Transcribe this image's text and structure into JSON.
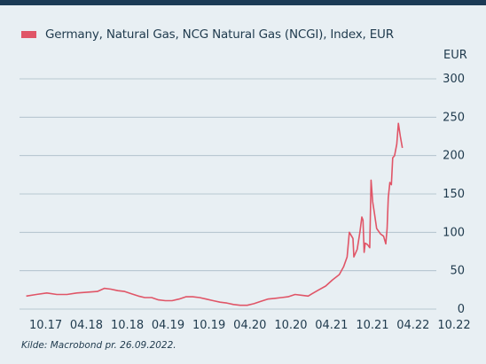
{
  "chart_data": {
    "type": "line",
    "series": [
      {
        "name": "Germany, Natural Gas, NCG Natural Gas (NCGI), Index, EUR",
        "color": "#e05567",
        "points": [
          [
            "2017-10-01",
            17
          ],
          [
            "2017-11-15",
            19
          ],
          [
            "2018-01-01",
            21
          ],
          [
            "2018-02-15",
            19
          ],
          [
            "2018-04-01",
            19
          ],
          [
            "2018-05-15",
            21
          ],
          [
            "2018-07-01",
            22
          ],
          [
            "2018-08-15",
            23
          ],
          [
            "2018-09-15",
            27
          ],
          [
            "2018-10-15",
            26
          ],
          [
            "2018-11-15",
            24
          ],
          [
            "2018-12-15",
            23
          ],
          [
            "2019-01-15",
            20
          ],
          [
            "2019-02-15",
            17
          ],
          [
            "2019-03-15",
            15
          ],
          [
            "2019-04-15",
            15
          ],
          [
            "2019-05-15",
            12
          ],
          [
            "2019-06-15",
            11
          ],
          [
            "2019-07-15",
            11
          ],
          [
            "2019-08-15",
            13
          ],
          [
            "2019-09-15",
            16
          ],
          [
            "2019-10-15",
            16
          ],
          [
            "2019-11-15",
            15
          ],
          [
            "2019-12-15",
            13
          ],
          [
            "2020-01-15",
            11
          ],
          [
            "2020-02-15",
            9
          ],
          [
            "2020-03-15",
            8
          ],
          [
            "2020-04-15",
            6
          ],
          [
            "2020-05-15",
            5
          ],
          [
            "2020-06-15",
            5
          ],
          [
            "2020-07-15",
            7
          ],
          [
            "2020-08-15",
            10
          ],
          [
            "2020-09-15",
            13
          ],
          [
            "2020-10-15",
            14
          ],
          [
            "2020-11-15",
            15
          ],
          [
            "2020-12-15",
            16
          ],
          [
            "2021-01-15",
            19
          ],
          [
            "2021-02-15",
            18
          ],
          [
            "2021-03-15",
            17
          ],
          [
            "2021-04-01",
            20
          ],
          [
            "2021-05-01",
            25
          ],
          [
            "2021-06-01",
            30
          ],
          [
            "2021-07-01",
            38
          ],
          [
            "2021-08-01",
            45
          ],
          [
            "2021-08-20",
            55
          ],
          [
            "2021-09-05",
            68
          ],
          [
            "2021-09-15",
            100
          ],
          [
            "2021-09-25",
            95
          ],
          [
            "2021-10-01",
            92
          ],
          [
            "2021-10-05",
            68
          ],
          [
            "2021-10-20",
            78
          ],
          [
            "2021-11-01",
            100
          ],
          [
            "2021-11-10",
            120
          ],
          [
            "2021-11-15",
            116
          ],
          [
            "2021-11-20",
            74
          ],
          [
            "2021-11-25",
            86
          ],
          [
            "2021-12-05",
            84
          ],
          [
            "2021-12-15",
            80
          ],
          [
            "2021-12-21",
            168
          ],
          [
            "2021-12-28",
            140
          ],
          [
            "2022-01-05",
            125
          ],
          [
            "2022-01-15",
            105
          ],
          [
            "2022-02-01",
            98
          ],
          [
            "2022-02-15",
            95
          ],
          [
            "2022-02-25",
            85
          ],
          [
            "2022-03-03",
            105
          ],
          [
            "2022-03-08",
            145
          ],
          [
            "2022-03-15",
            165
          ],
          [
            "2022-03-22",
            162
          ],
          [
            "2022-03-28",
            197
          ],
          [
            "2022-04-05",
            200
          ],
          [
            "2022-04-15",
            215
          ],
          [
            "2022-04-22",
            242
          ],
          [
            "2022-05-01",
            225
          ],
          [
            "2022-05-10",
            210
          ]
        ]
      }
    ],
    "x_ticks": [
      {
        "date": "2017-10-01",
        "label": "10.17"
      },
      {
        "date": "2018-04-01",
        "label": "04.18"
      },
      {
        "date": "2018-10-01",
        "label": "10.18"
      },
      {
        "date": "2019-04-01",
        "label": "04.19"
      },
      {
        "date": "2019-10-01",
        "label": "10.19"
      },
      {
        "date": "2020-04-01",
        "label": "04.20"
      },
      {
        "date": "2020-10-01",
        "label": "10.20"
      },
      {
        "date": "2021-04-01",
        "label": "04.21"
      },
      {
        "date": "2021-10-01",
        "label": "10.21"
      },
      {
        "date": "2022-04-01",
        "label": "04.22"
      },
      {
        "date": "2022-10-01",
        "label": "10.22"
      }
    ],
    "y_ticks": [
      0,
      50,
      100,
      150,
      200,
      250,
      300
    ],
    "ylim": [
      0,
      300
    ],
    "xlim": [
      "2017-09-01",
      "2022-10-01"
    ],
    "y_unit": "EUR",
    "y_axis_side": "right",
    "grid": "horizontal",
    "legend_position": "top-left"
  },
  "source": "Kilde: Macrobond pr. 26.09.2022."
}
